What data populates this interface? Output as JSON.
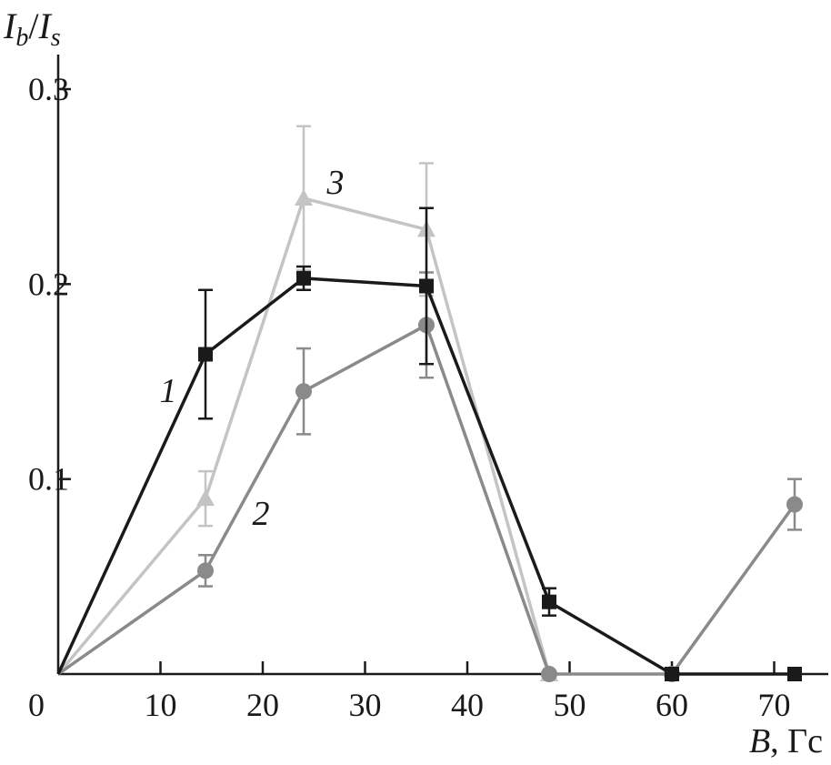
{
  "chart_data": {
    "type": "line",
    "ylabel": "I_b/I_s",
    "ylabel_main": "I",
    "ylabel_sub1": "b",
    "ylabel_slash": "/",
    "ylabel_sub2": "s",
    "xlabel_var": "B",
    "xlabel_unit": ", Гс",
    "xlim": [
      0,
      75
    ],
    "ylim": [
      0,
      0.32
    ],
    "xticks": [
      0,
      10,
      20,
      30,
      40,
      50,
      60,
      70
    ],
    "xtick_labels": [
      "0",
      "10",
      "20",
      "30",
      "40",
      "50",
      "60",
      "70"
    ],
    "yticks": [
      0.1,
      0.2,
      0.3
    ],
    "ytick_labels": [
      "0.1",
      "0.2",
      "0.3"
    ],
    "grid": false,
    "series": [
      {
        "name": "1",
        "color": "#1a1a1a",
        "marker": "square",
        "x": [
          0,
          14.4,
          24,
          36,
          48,
          60,
          72
        ],
        "y": [
          0,
          0.164,
          0.203,
          0.199,
          0.037,
          0,
          0
        ],
        "err": [
          0,
          0.033,
          0.006,
          0.04,
          0.007,
          0,
          0
        ]
      },
      {
        "name": "2",
        "color": "#8a8a8a",
        "marker": "circle",
        "x": [
          0,
          14.4,
          24,
          36,
          48,
          60,
          72
        ],
        "y": [
          0,
          0.053,
          0.145,
          0.179,
          0,
          0,
          0.087
        ],
        "err": [
          0,
          0.008,
          0.022,
          0.027,
          0,
          0,
          0.013
        ]
      },
      {
        "name": "3",
        "color": "#c4c4c4",
        "marker": "triangle",
        "x": [
          0,
          14.4,
          24,
          36,
          48
        ],
        "y": [
          0,
          0.09,
          0.244,
          0.228,
          0
        ],
        "err": [
          0,
          0.014,
          0.037,
          0.034,
          0
        ]
      }
    ],
    "curve_labels": [
      {
        "text": "1",
        "series": "1"
      },
      {
        "text": "2",
        "series": "2"
      },
      {
        "text": "3",
        "series": "3"
      }
    ]
  }
}
